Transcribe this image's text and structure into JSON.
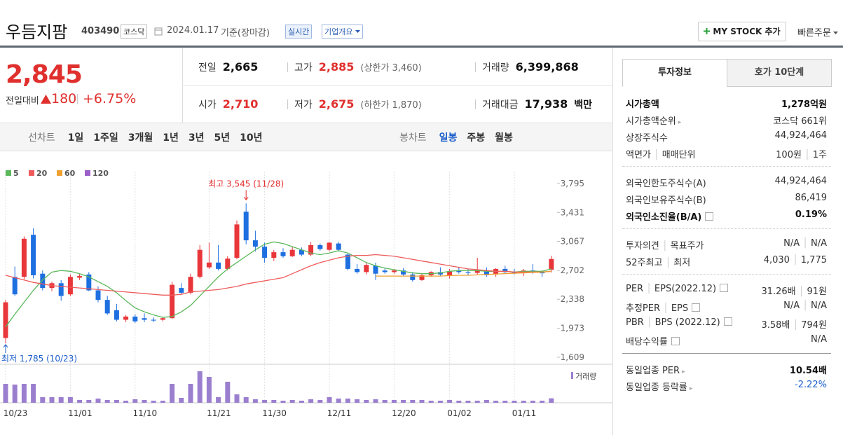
{
  "header": {
    "name": "우듬지팜",
    "code": "403490",
    "market": "코스닥",
    "date": "2024.01.17",
    "basis": "기준(장마감)",
    "realtime": "실시간",
    "company": "기업개요",
    "mystock": "MY STOCK 추가",
    "quick_order": "빠른주문"
  },
  "price": {
    "current": "2,845",
    "change_label": "전일대비",
    "change": "180",
    "change_rate": "+6.75%",
    "color": "#e0302e"
  },
  "summary": [
    {
      "label": "전일",
      "value": "2,665"
    },
    {
      "label": "고가",
      "value": "2,885",
      "note": "(상한가 3,460)",
      "color": "#e0302e"
    },
    {
      "label": "거래량",
      "value": "6,399,868"
    },
    {
      "label": "시가",
      "value": "2,710",
      "color": "#e0302e"
    },
    {
      "label": "저가",
      "value": "2,675",
      "note": "(하한가 1,870)",
      "color": "#e0302e"
    },
    {
      "label": "거래대금",
      "value": "17,938",
      "unit": "백만"
    }
  ],
  "toolbar": {
    "line_label": "선차트",
    "line_periods": [
      "1일",
      "1주일",
      "3개월",
      "1년",
      "3년",
      "5년",
      "10년"
    ],
    "candle_label": "봉차트",
    "candle_periods": [
      "일봉",
      "주봉",
      "월봉"
    ],
    "selected_color": "#1a5dcb"
  },
  "chart_data": {
    "type": "candlestick",
    "x": [
      "10/23",
      null,
      null,
      null,
      null,
      null,
      null,
      "11/01",
      null,
      null,
      null,
      null,
      null,
      null,
      "11/10",
      null,
      null,
      null,
      null,
      null,
      null,
      null,
      "11/21",
      null,
      null,
      null,
      null,
      null,
      "11/30",
      null,
      null,
      null,
      null,
      null,
      null,
      "12/11",
      null,
      null,
      null,
      null,
      null,
      null,
      "12/20",
      null,
      null,
      null,
      null,
      null,
      "01/02",
      null,
      null,
      null,
      null,
      null,
      null,
      "01/11",
      null,
      null,
      null,
      null
    ],
    "open": [
      1850,
      2620,
      2620,
      3150,
      2660,
      2480,
      2540,
      2400,
      2610,
      2650,
      2450,
      2330,
      2200,
      2080,
      2120,
      2100,
      2080,
      2080,
      2100,
      2480,
      2420,
      2620,
      2740,
      2800,
      2720,
      2860,
      3440,
      3080,
      3000,
      2860,
      2930,
      2880,
      2960,
      2900,
      3020,
      2960,
      3040,
      2900,
      2720,
      2680,
      2760,
      2700,
      2680,
      2700,
      2650,
      2580,
      2640,
      2680,
      2640,
      2700,
      2680,
      2670,
      2700,
      2650,
      2720,
      2680,
      2670,
      2700,
      2680,
      2710
    ],
    "high": [
      2330,
      2750,
      3130,
      3230,
      2700,
      2560,
      2580,
      2650,
      2660,
      2680,
      2500,
      2380,
      2280,
      2140,
      2150,
      2160,
      2110,
      2120,
      2560,
      2540,
      2660,
      3020,
      3050,
      3020,
      2880,
      3330,
      3545,
      3200,
      3050,
      2960,
      2980,
      3000,
      2990,
      3060,
      3040,
      3060,
      3060,
      2910,
      2780,
      2800,
      2800,
      2730,
      2720,
      2730,
      2680,
      2660,
      2690,
      2740,
      2720,
      2740,
      2720,
      2860,
      2740,
      2730,
      2760,
      2720,
      2720,
      2780,
      2700,
      2885
    ],
    "low": [
      1785,
      2380,
      2590,
      2600,
      2450,
      2440,
      2320,
      2380,
      2580,
      2440,
      2300,
      2140,
      2060,
      2050,
      2040,
      2050,
      2050,
      2060,
      2090,
      2400,
      2400,
      2600,
      2720,
      2700,
      2700,
      2840,
      3030,
      2940,
      2800,
      2820,
      2860,
      2870,
      2880,
      2880,
      2950,
      2940,
      2940,
      2700,
      2660,
      2650,
      2580,
      2660,
      2660,
      2630,
      2560,
      2570,
      2620,
      2630,
      2600,
      2660,
      2640,
      2650,
      2620,
      2620,
      2660,
      2650,
      2630,
      2660,
      2620,
      2675
    ],
    "close": [
      2300,
      2400,
      3100,
      2640,
      2480,
      2540,
      2380,
      2620,
      2630,
      2450,
      2330,
      2160,
      2080,
      2120,
      2060,
      2080,
      2070,
      2100,
      2520,
      2420,
      2620,
      2960,
      2800,
      2720,
      2850,
      3280,
      3080,
      3000,
      2860,
      2930,
      2880,
      2960,
      2900,
      3020,
      2970,
      3050,
      2960,
      2720,
      2680,
      2770,
      2660,
      2680,
      2700,
      2650,
      2580,
      2640,
      2680,
      2650,
      2690,
      2680,
      2670,
      2700,
      2640,
      2720,
      2680,
      2670,
      2700,
      2680,
      2665,
      2845
    ],
    "volume": [
      27000000,
      26000000,
      27000000,
      27000000,
      8000000,
      8000000,
      8000000,
      8000000,
      4000000,
      4000000,
      6000000,
      4000000,
      4000000,
      3000000,
      5000000,
      4000000,
      3000000,
      3000000,
      27000000,
      7000000,
      27000000,
      45000000,
      37000000,
      8000000,
      30000000,
      12000000,
      8000000,
      5000000,
      4000000,
      4000000,
      3000000,
      4000000,
      3000000,
      5000000,
      4000000,
      8000000,
      6000000,
      6000000,
      5000000,
      4000000,
      5000000,
      4000000,
      4000000,
      4000000,
      4000000,
      4000000,
      3000000,
      3000000,
      4000000,
      3000000,
      3000000,
      3000000,
      4000000,
      3000000,
      3000000,
      3000000,
      3000000,
      3000000,
      3000000,
      6399868
    ],
    "up_color": "#e8363a",
    "down_color": "#1e6fe0",
    "volume_color": "#9b7fcf",
    "volume_label": "거래량",
    "volume_lim": [
      0,
      50000000
    ],
    "ylim": [
      1520,
      3860
    ],
    "yticks": [
      {
        "value": 3795,
        "label": "3,795"
      },
      {
        "value": 3431,
        "label": "3,431"
      },
      {
        "value": 3067,
        "label": "3,067"
      },
      {
        "value": 2702,
        "label": "2,702"
      },
      {
        "value": 2338,
        "label": "2,338"
      },
      {
        "value": 1973,
        "label": "1,973"
      },
      {
        "value": 1609,
        "label": "1,609"
      }
    ],
    "series": [
      {
        "name": "5",
        "color": "#5cb85c",
        "values": [
          1990,
          2150,
          2300,
          2450,
          2580,
          2680,
          2700,
          2690,
          2660,
          2620,
          2560,
          2500,
          2420,
          2320,
          2230,
          2180,
          2140,
          2110,
          2120,
          2180,
          2260,
          2380,
          2500,
          2620,
          2720,
          2800,
          2880,
          2960,
          3030,
          3060,
          3040,
          3000,
          2960,
          2920,
          2900,
          2920,
          2950,
          2920,
          2860,
          2800,
          2760,
          2730,
          2710,
          2690,
          2670,
          2660,
          2660,
          2670,
          2690,
          2700,
          2700,
          2700,
          2690,
          2690,
          2690,
          2680,
          2690,
          2690,
          2690,
          2720
        ]
      },
      {
        "name": "20",
        "color": "#ef5b5b",
        "values": [
          2640,
          2610,
          2580,
          2550,
          2530,
          2510,
          2500,
          2490,
          2480,
          2470,
          2460,
          2450,
          2440,
          2430,
          2420,
          2410,
          2400,
          2390,
          2390,
          2400,
          2430,
          2440,
          2450,
          2460,
          2480,
          2500,
          2530,
          2550,
          2570,
          2590,
          2610,
          2660,
          2710,
          2760,
          2800,
          2830,
          2860,
          2880,
          2890,
          2890,
          2900,
          2890,
          2880,
          2860,
          2840,
          2820,
          2800,
          2780,
          2760,
          2740,
          2720,
          2710,
          2700,
          2690,
          2690,
          2680,
          2680,
          2680,
          2680,
          2690
        ]
      },
      {
        "name": "60",
        "color": "#f0a030",
        "values": [
          null,
          null,
          null,
          null,
          null,
          null,
          null,
          null,
          null,
          null,
          null,
          null,
          null,
          null,
          null,
          null,
          null,
          null,
          null,
          null,
          null,
          null,
          null,
          null,
          null,
          null,
          null,
          null,
          null,
          null,
          null,
          null,
          null,
          null,
          null,
          null,
          null,
          null,
          null,
          null,
          2630,
          2630,
          2630,
          2630,
          2630,
          2630,
          2630,
          2630,
          2635,
          2640,
          2640,
          2645,
          2650,
          2655,
          2660,
          2665,
          2670,
          2675,
          2680,
          2690
        ]
      },
      {
        "name": "120",
        "color": "#9c5fc9",
        "values": [
          null,
          null,
          null,
          null,
          null,
          null,
          null,
          null,
          null,
          null,
          null,
          null,
          null,
          null,
          null,
          null,
          null,
          null,
          null,
          null,
          null,
          null,
          null,
          null,
          null,
          null,
          null,
          null,
          null,
          null,
          null,
          null,
          null,
          null,
          null,
          null,
          null,
          null,
          null,
          null,
          null,
          null,
          null,
          null,
          null,
          null,
          null,
          null,
          null,
          null,
          null,
          null,
          null,
          null,
          null,
          null,
          null,
          null,
          null,
          null
        ]
      }
    ],
    "annotations": {
      "high": "최고 3,545 (11/28)",
      "low": "최저 1,785 (10/23)",
      "high_color": "#e0302e",
      "low_color": "#1a5dcb"
    }
  },
  "invest": {
    "tabs": [
      "투자정보",
      "호가 10단계"
    ],
    "groups": [
      [
        {
          "labels": [
            "시가총액"
          ],
          "values": [
            "1,278억원"
          ],
          "bold": true
        },
        {
          "labels": [
            "시가총액순위"
          ],
          "values": [
            "코스닥 661위"
          ],
          "arrow": true
        },
        {
          "labels": [
            "상장주식수"
          ],
          "values": [
            "44,924,464"
          ]
        },
        {
          "labels": [
            "액면가",
            "매매단위"
          ],
          "values": [
            "100원",
            "1주"
          ]
        }
      ],
      [
        {
          "labels": [
            "외국인한도주식수(A)"
          ],
          "values": [
            "44,924,464"
          ]
        },
        {
          "labels": [
            "외국인보유주식수(B)"
          ],
          "values": [
            "86,419"
          ]
        },
        {
          "labels": [
            "외국인소진율(B/A)"
          ],
          "values": [
            "0.19%"
          ],
          "bold": true,
          "help": true
        }
      ],
      [
        {
          "labels": [
            "투자의견",
            "목표주가"
          ],
          "values": [
            "N/A",
            "N/A"
          ]
        },
        {
          "labels": [
            "52주최고",
            "최저"
          ],
          "values": [
            "4,030",
            "1,775"
          ]
        }
      ],
      [
        {
          "labels": [
            "PER",
            "EPS(2022.12)"
          ],
          "values": [
            "31.26배",
            "91원"
          ],
          "help": true
        },
        {
          "labels": [
            "추정PER",
            "EPS"
          ],
          "values": [
            "N/A",
            "N/A"
          ],
          "help": true
        },
        {
          "labels": [
            "PBR",
            "BPS (2022.12)"
          ],
          "values": [
            "3.58배",
            "794원"
          ],
          "help": true
        },
        {
          "labels": [
            "배당수익률"
          ],
          "values": [
            "N/A"
          ],
          "help": true
        }
      ],
      [
        {
          "labels": [
            "동일업종 PER"
          ],
          "values": [
            "10.54배"
          ],
          "bold": true,
          "arrow": true
        },
        {
          "labels": [
            "동일업종 등락률"
          ],
          "values": [
            "-2.22%"
          ],
          "arrow": true,
          "color": "#1a5dcb"
        }
      ]
    ]
  }
}
